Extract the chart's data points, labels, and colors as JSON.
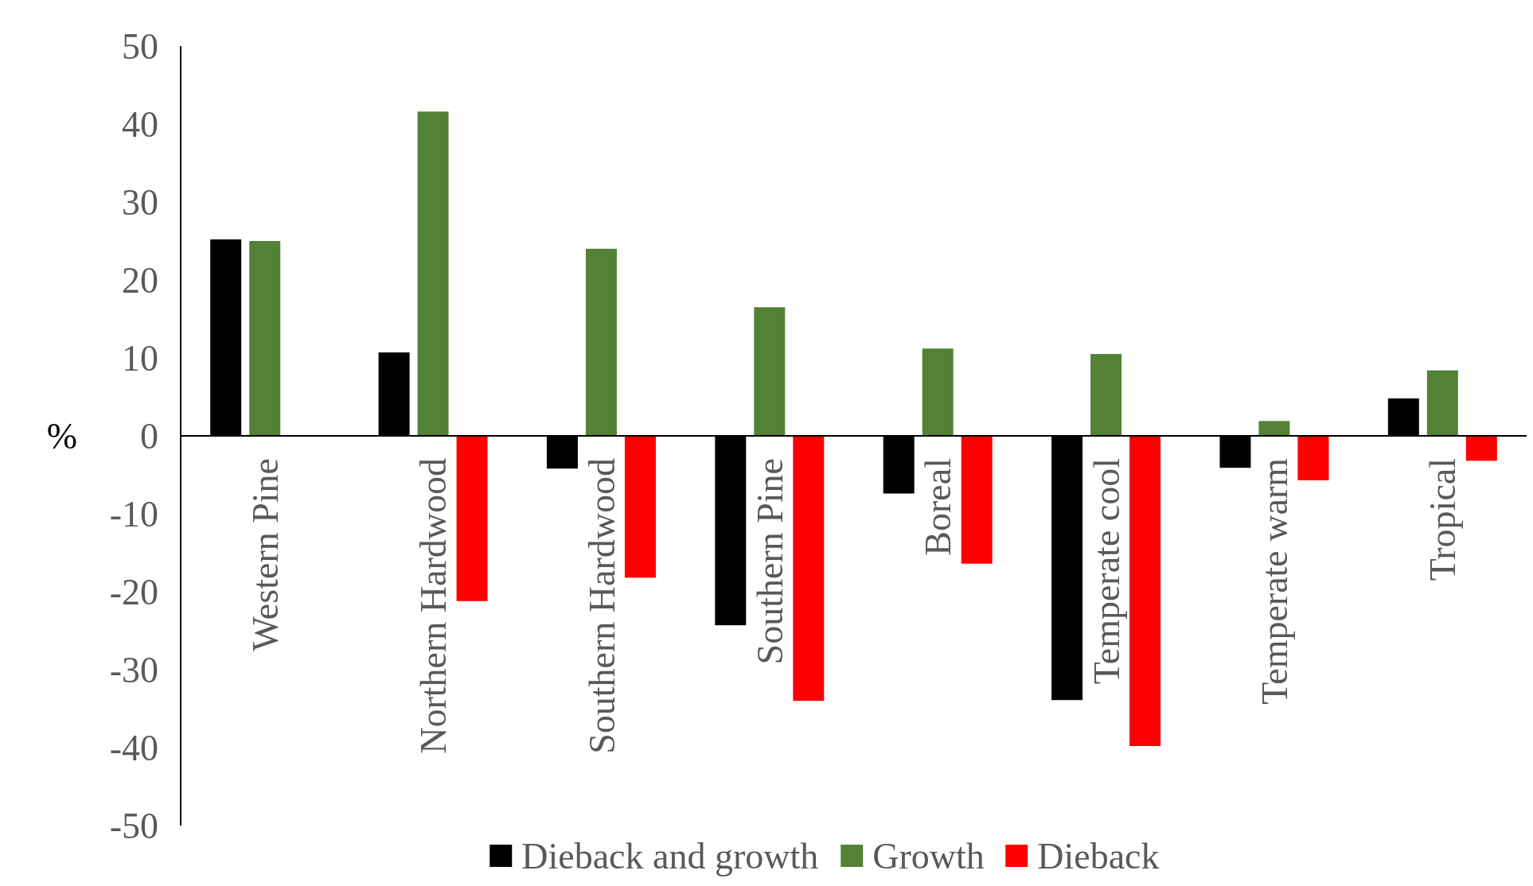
{
  "chart_data": {
    "type": "bar",
    "ylabel": "%",
    "categories": [
      "Western Pine",
      "Northern Hardwood",
      "Southern Hardwood",
      "Southern Pine",
      "Boreal",
      "Temperate cool",
      "Temperate warm",
      "Tropical"
    ],
    "series": [
      {
        "name": "Dieback and growth",
        "color": "#000000",
        "values": [
          25.2,
          10.7,
          -4.2,
          -24.3,
          -7.4,
          -33.9,
          -4.1,
          4.8
        ]
      },
      {
        "name": "Growth",
        "color": "#538135",
        "values": [
          25,
          41.6,
          24,
          16.5,
          11.2,
          10.5,
          1.9,
          8.4
        ]
      },
      {
        "name": "Dieback",
        "color": "#ff0000",
        "values": [
          null,
          -21.2,
          -18.2,
          -34,
          -16.4,
          -39.8,
          -5.7,
          -3.2
        ]
      }
    ],
    "ylim": [
      -50,
      50
    ],
    "yticks": [
      -50,
      -40,
      -30,
      -20,
      -10,
      0,
      10,
      20,
      30,
      40,
      50
    ],
    "grid": false,
    "legend": "bottom"
  }
}
